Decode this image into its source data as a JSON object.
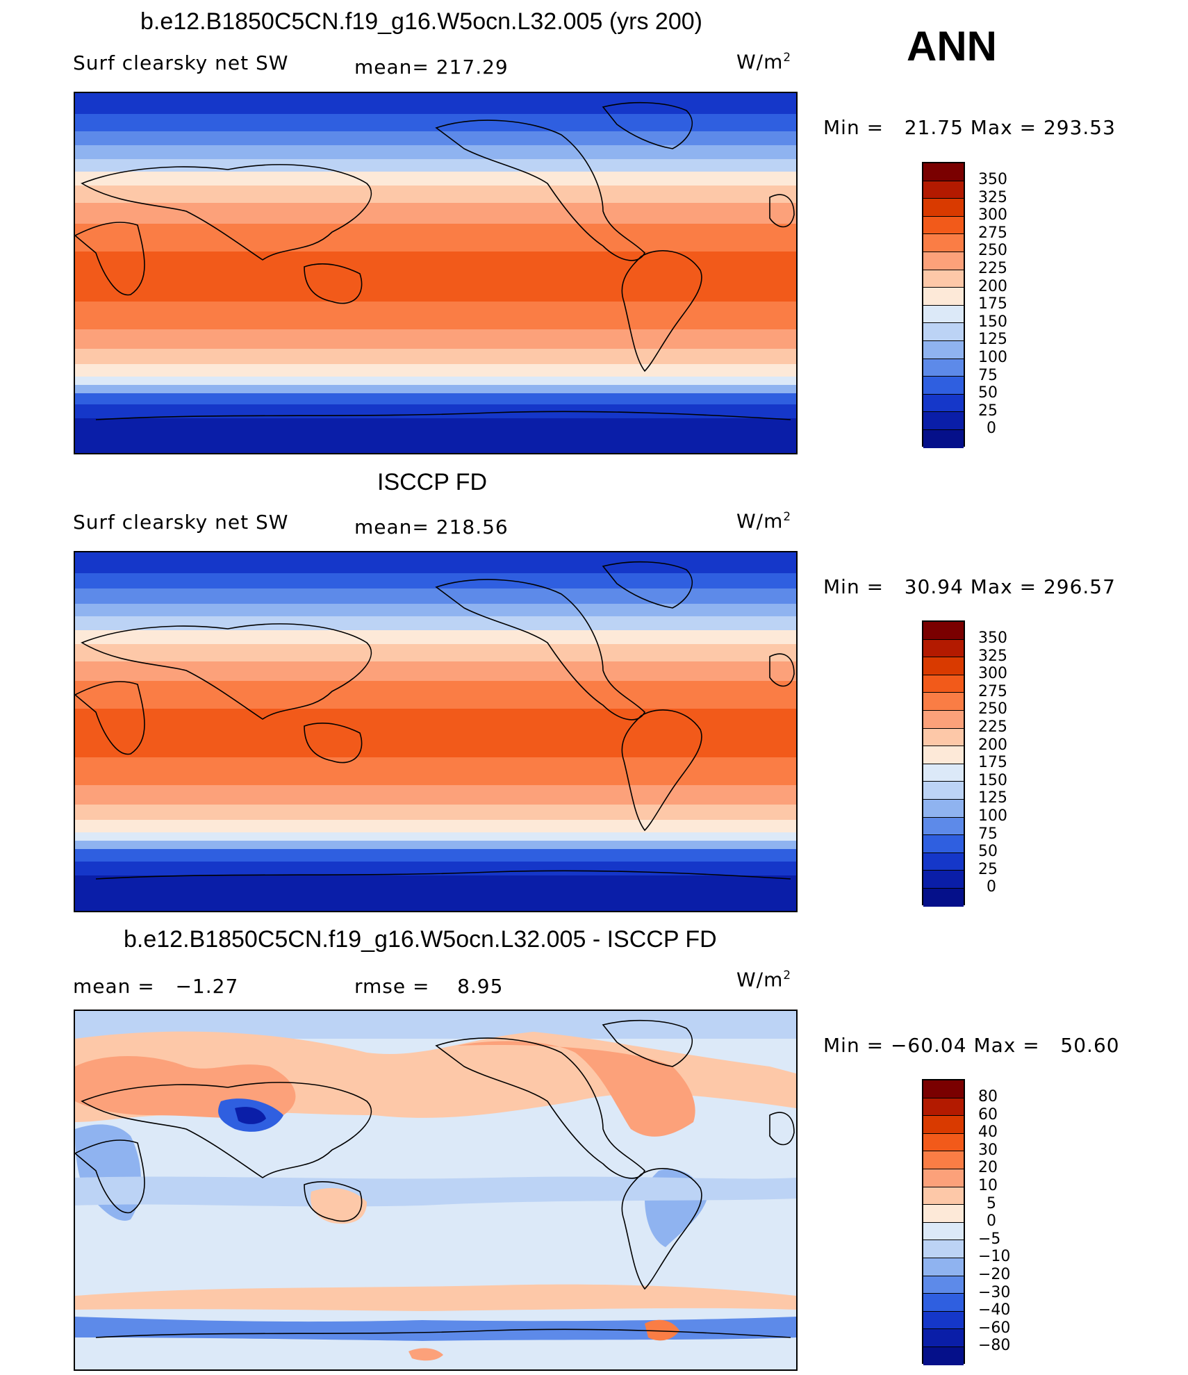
{
  "header": {
    "season": "ANN"
  },
  "units": "W/m",
  "units_exp": "2",
  "panels": [
    {
      "title": "b.e12.B1850C5CN.f19_g16.W5ocn.L32.005 (yrs 200)",
      "left_label": "Surf clearsky net SW",
      "center_label": "mean= 217.29",
      "minmax": "Min =   21.75 Max = 293.53",
      "colorbar": {
        "levels": [
          "350",
          "325",
          "300",
          "275",
          "250",
          "225",
          "200",
          "175",
          "150",
          "125",
          "100",
          "75",
          "50",
          "25",
          "0"
        ],
        "colors": [
          "#7a0000",
          "#b31a00",
          "#d93a00",
          "#f25a1a",
          "#fa7d45",
          "#fca17a",
          "#fdc8a8",
          "#fde9d8",
          "#dce9f8",
          "#bcd3f5",
          "#8fb3f0",
          "#5d8ae9",
          "#2f5fe0",
          "#1537c9",
          "#0a1ea8",
          "#05108a"
        ]
      }
    },
    {
      "title": "ISCCP FD",
      "left_label": "Surf clearsky net SW",
      "center_label": "mean= 218.56",
      "minmax": "Min =   30.94 Max = 296.57",
      "colorbar": {
        "levels": [
          "350",
          "325",
          "300",
          "275",
          "250",
          "225",
          "200",
          "175",
          "150",
          "125",
          "100",
          "75",
          "50",
          "25",
          "0"
        ],
        "colors": [
          "#7a0000",
          "#b31a00",
          "#d93a00",
          "#f25a1a",
          "#fa7d45",
          "#fca17a",
          "#fdc8a8",
          "#fde9d8",
          "#dce9f8",
          "#bcd3f5",
          "#8fb3f0",
          "#5d8ae9",
          "#2f5fe0",
          "#1537c9",
          "#0a1ea8",
          "#05108a"
        ]
      }
    },
    {
      "title": "b.e12.B1850C5CN.f19_g16.W5ocn.L32.005 - ISCCP FD",
      "left_label": "mean =   −1.27",
      "center_label": "rmse =    8.95",
      "minmax": "Min = −60.04 Max =   50.60",
      "colorbar": {
        "levels": [
          "80",
          "60",
          "40",
          "30",
          "20",
          "10",
          "5",
          "0",
          "−5",
          "−10",
          "−20",
          "−30",
          "−40",
          "−60",
          "−80"
        ],
        "colors": [
          "#7a0000",
          "#b31a00",
          "#d93a00",
          "#f25a1a",
          "#fa7d45",
          "#fca17a",
          "#fdc8a8",
          "#fde9d8",
          "#dce9f8",
          "#bcd3f5",
          "#8fb3f0",
          "#5d8ae9",
          "#2f5fe0",
          "#1537c9",
          "#0a1ea8",
          "#05108a"
        ]
      }
    }
  ]
}
